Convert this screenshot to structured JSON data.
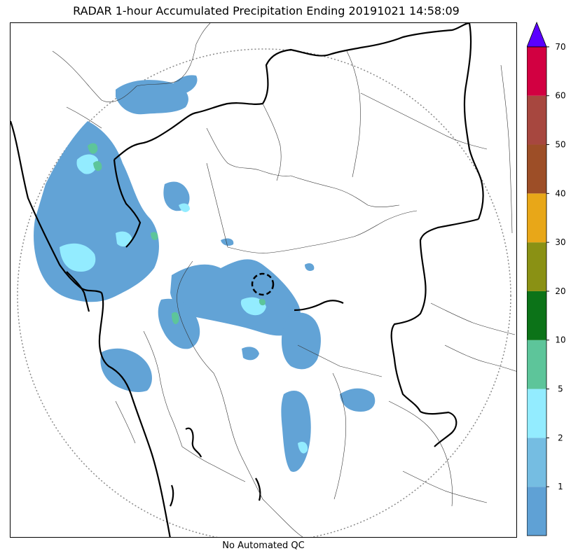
{
  "title": "RADAR 1-hour Accumulated Precipitation Ending 20191021 14:58:09",
  "footer_note": "No Automated QC",
  "colorbar": {
    "levels": [
      {
        "value": 0,
        "color": "#5fa1d5"
      },
      {
        "value": 1,
        "color": "#75bde2"
      },
      {
        "value": 2,
        "color": "#93ecff"
      },
      {
        "value": 5,
        "color": "#5dc59a"
      },
      {
        "value": 10,
        "color": "#0c7318"
      },
      {
        "value": 20,
        "color": "#8a9114"
      },
      {
        "value": 30,
        "color": "#e8a718"
      },
      {
        "value": 40,
        "color": "#9d4e27"
      },
      {
        "value": 50,
        "color": "#a7473f"
      },
      {
        "value": 60,
        "color": "#d20041"
      }
    ],
    "tick_labels": [
      "1",
      "2",
      "5",
      "10",
      "20",
      "30",
      "40",
      "50",
      "60",
      "70"
    ],
    "extend_color": "#5a00ff"
  }
}
